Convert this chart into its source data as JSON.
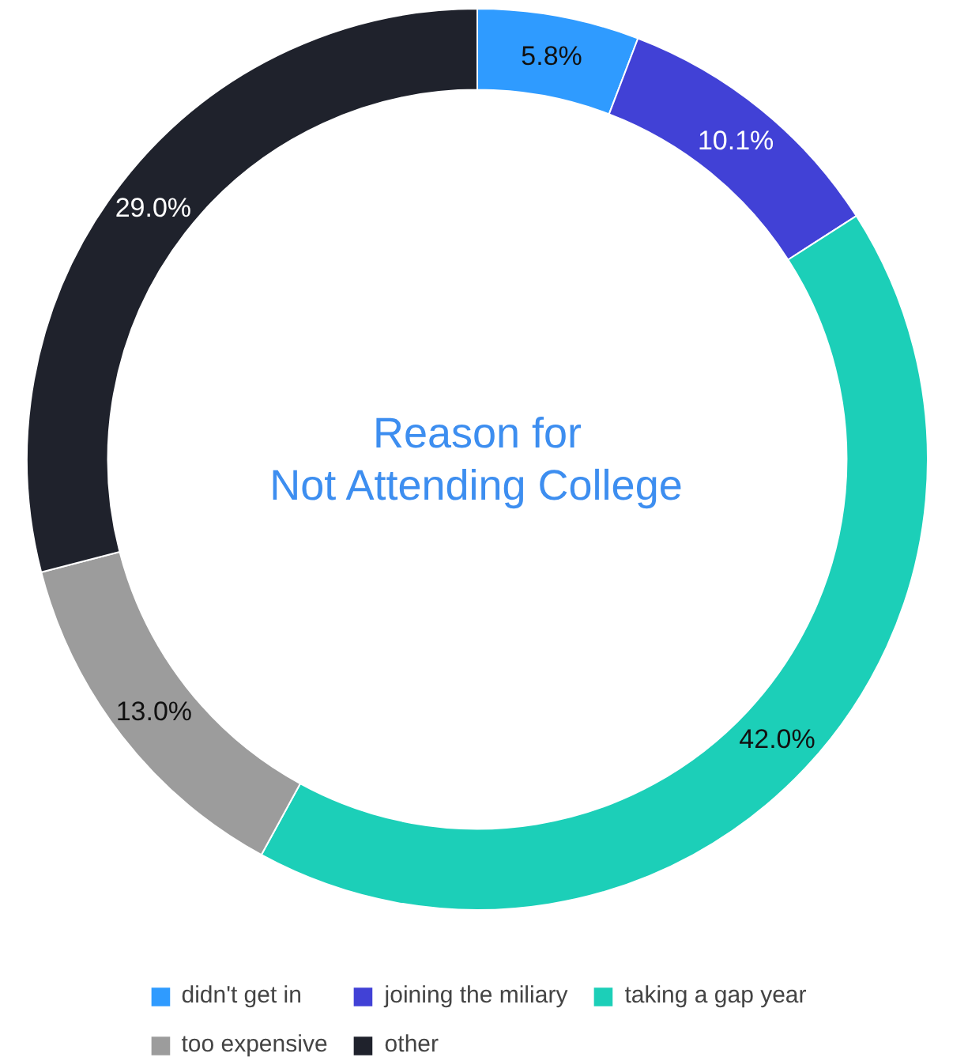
{
  "chart_data": {
    "type": "donut",
    "title": "Reason for\nNot Attending College",
    "categories": [
      "didn't get in",
      "joining the miliary",
      "taking a gap year",
      "too expensive",
      "other"
    ],
    "values": [
      5.8,
      10.1,
      42.0,
      13.0,
      29.0
    ],
    "colors": [
      "#2f9bff",
      "#4141d6",
      "#1ccfb8",
      "#9c9c9c",
      "#1f222c"
    ],
    "value_labels": [
      "5.8%",
      "10.1%",
      "42.0%",
      "13.0%",
      "29.0%"
    ],
    "legend": "bottom"
  }
}
